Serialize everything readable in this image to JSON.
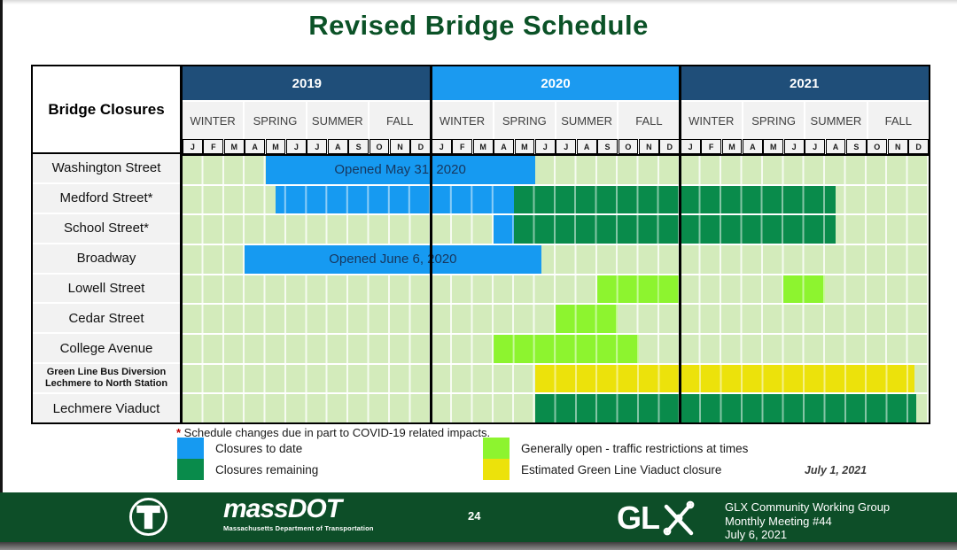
{
  "title": "Revised Bridge Schedule",
  "palette": {
    "header_dark_blue": "#1f4e79",
    "header_light_blue": "#1b9af0",
    "bar_blue": "#169af1",
    "bar_dark_green": "#098b4b",
    "bar_lime": "#8df42f",
    "bar_yellow": "#ece20b",
    "cell_light_green": "#d3ebbb"
  },
  "table": {
    "corner_label": "Bridge Closures",
    "years": [
      {
        "label": "2019",
        "color_key": "header_dark_blue"
      },
      {
        "label": "2020",
        "color_key": "header_light_blue"
      },
      {
        "label": "2021",
        "color_key": "header_dark_blue"
      }
    ],
    "seasons": [
      "WINTER",
      "SPRING",
      "SUMMER",
      "FALL"
    ],
    "month_letters": [
      "J",
      "F",
      "M",
      "A",
      "M",
      "J",
      "J",
      "A",
      "S",
      "O",
      "N",
      "D"
    ]
  },
  "chart_data": {
    "type": "gantt",
    "title": "Revised Bridge Schedule",
    "timeline": {
      "start": "Jan 2019",
      "end": "Dec 2021",
      "unit": "month",
      "note": "segment positions m0/m1 are months elapsed since Jan 2019 (end exclusive)"
    },
    "rows": [
      {
        "label": "Washington Street",
        "segments": [
          {
            "type": "closure_to_date",
            "m0": 4,
            "m1": 17,
            "label": "Opened May 31, 2020",
            "period": "May 2019 - May 2020"
          }
        ]
      },
      {
        "label": "Medford Street*",
        "segments": [
          {
            "type": "closure_to_date",
            "m0": 4.5,
            "m1": 16,
            "period": "mid-May 2019 - Apr 2020"
          },
          {
            "type": "closure_remaining",
            "m0": 16,
            "m1": 31.5,
            "period": "May 2020 - mid-Aug 2021"
          }
        ]
      },
      {
        "label": "School Street*",
        "segments": [
          {
            "type": "closure_to_date",
            "m0": 15,
            "m1": 16,
            "period": "Apr 2020"
          },
          {
            "type": "closure_remaining",
            "m0": 16,
            "m1": 31.5,
            "period": "May 2020 - mid-Aug 2021"
          }
        ]
      },
      {
        "label": "Broadway",
        "segments": [
          {
            "type": "closure_to_date",
            "m0": 3,
            "m1": 17.3,
            "label": "Opened June 6, 2020",
            "period": "Apr 2019 - early Jun 2020"
          }
        ]
      },
      {
        "label": "Lowell Street",
        "segments": [
          {
            "type": "generally_open",
            "m0": 20,
            "m1": 24,
            "period": "Sep - Dec 2020"
          },
          {
            "type": "generally_open",
            "m0": 29,
            "m1": 31,
            "period": "Jun - Jul 2021"
          }
        ]
      },
      {
        "label": "Cedar Street",
        "segments": [
          {
            "type": "generally_open",
            "m0": 18,
            "m1": 21,
            "period": "Jul - Sep 2020"
          }
        ]
      },
      {
        "label": "College Avenue",
        "segments": [
          {
            "type": "generally_open",
            "m0": 15,
            "m1": 22,
            "period": "Apr - Oct 2020"
          }
        ]
      },
      {
        "label": "Green Line Bus Diversion Lechmere to North Station",
        "label_lines": [
          "Green Line Bus Diversion",
          "Lechmere to North Station"
        ],
        "segments": [
          {
            "type": "viaduct_closure",
            "m0": 17,
            "m1": 35.3,
            "period": "Jun 2020 - early Dec 2021"
          }
        ]
      },
      {
        "label": "Lechmere Viaduct",
        "segments": [
          {
            "type": "closure_remaining",
            "m0": 17,
            "m1": 35.4,
            "period": "Jun 2020 - early Dec 2021"
          }
        ]
      }
    ],
    "legend": [
      {
        "label": "Closures to date",
        "type": "closure_to_date",
        "color": "#169af1"
      },
      {
        "label": "Closures remaining",
        "type": "closure_remaining",
        "color": "#098b4b"
      },
      {
        "label": "Generally open - traffic restrictions at times",
        "type": "generally_open",
        "color": "#8df42f"
      },
      {
        "label": "Estimated Green Line Viaduct closure",
        "type": "viaduct_closure",
        "color": "#ece20b"
      }
    ]
  },
  "footnote": {
    "marker": "*",
    "text": " Schedule changes due in part to COVID-19 related impacts."
  },
  "legend": {
    "as_of_date": "July 1, 2021"
  },
  "footer": {
    "page_number": "24",
    "massdot_name": "massDOT",
    "massdot_tagline": "Massachusetts Department of Transportation",
    "glx_wordmark": "GL",
    "meeting_lines": [
      "GLX Community Working Group",
      "Monthly Meeting #44",
      "July 6, 2021"
    ]
  }
}
